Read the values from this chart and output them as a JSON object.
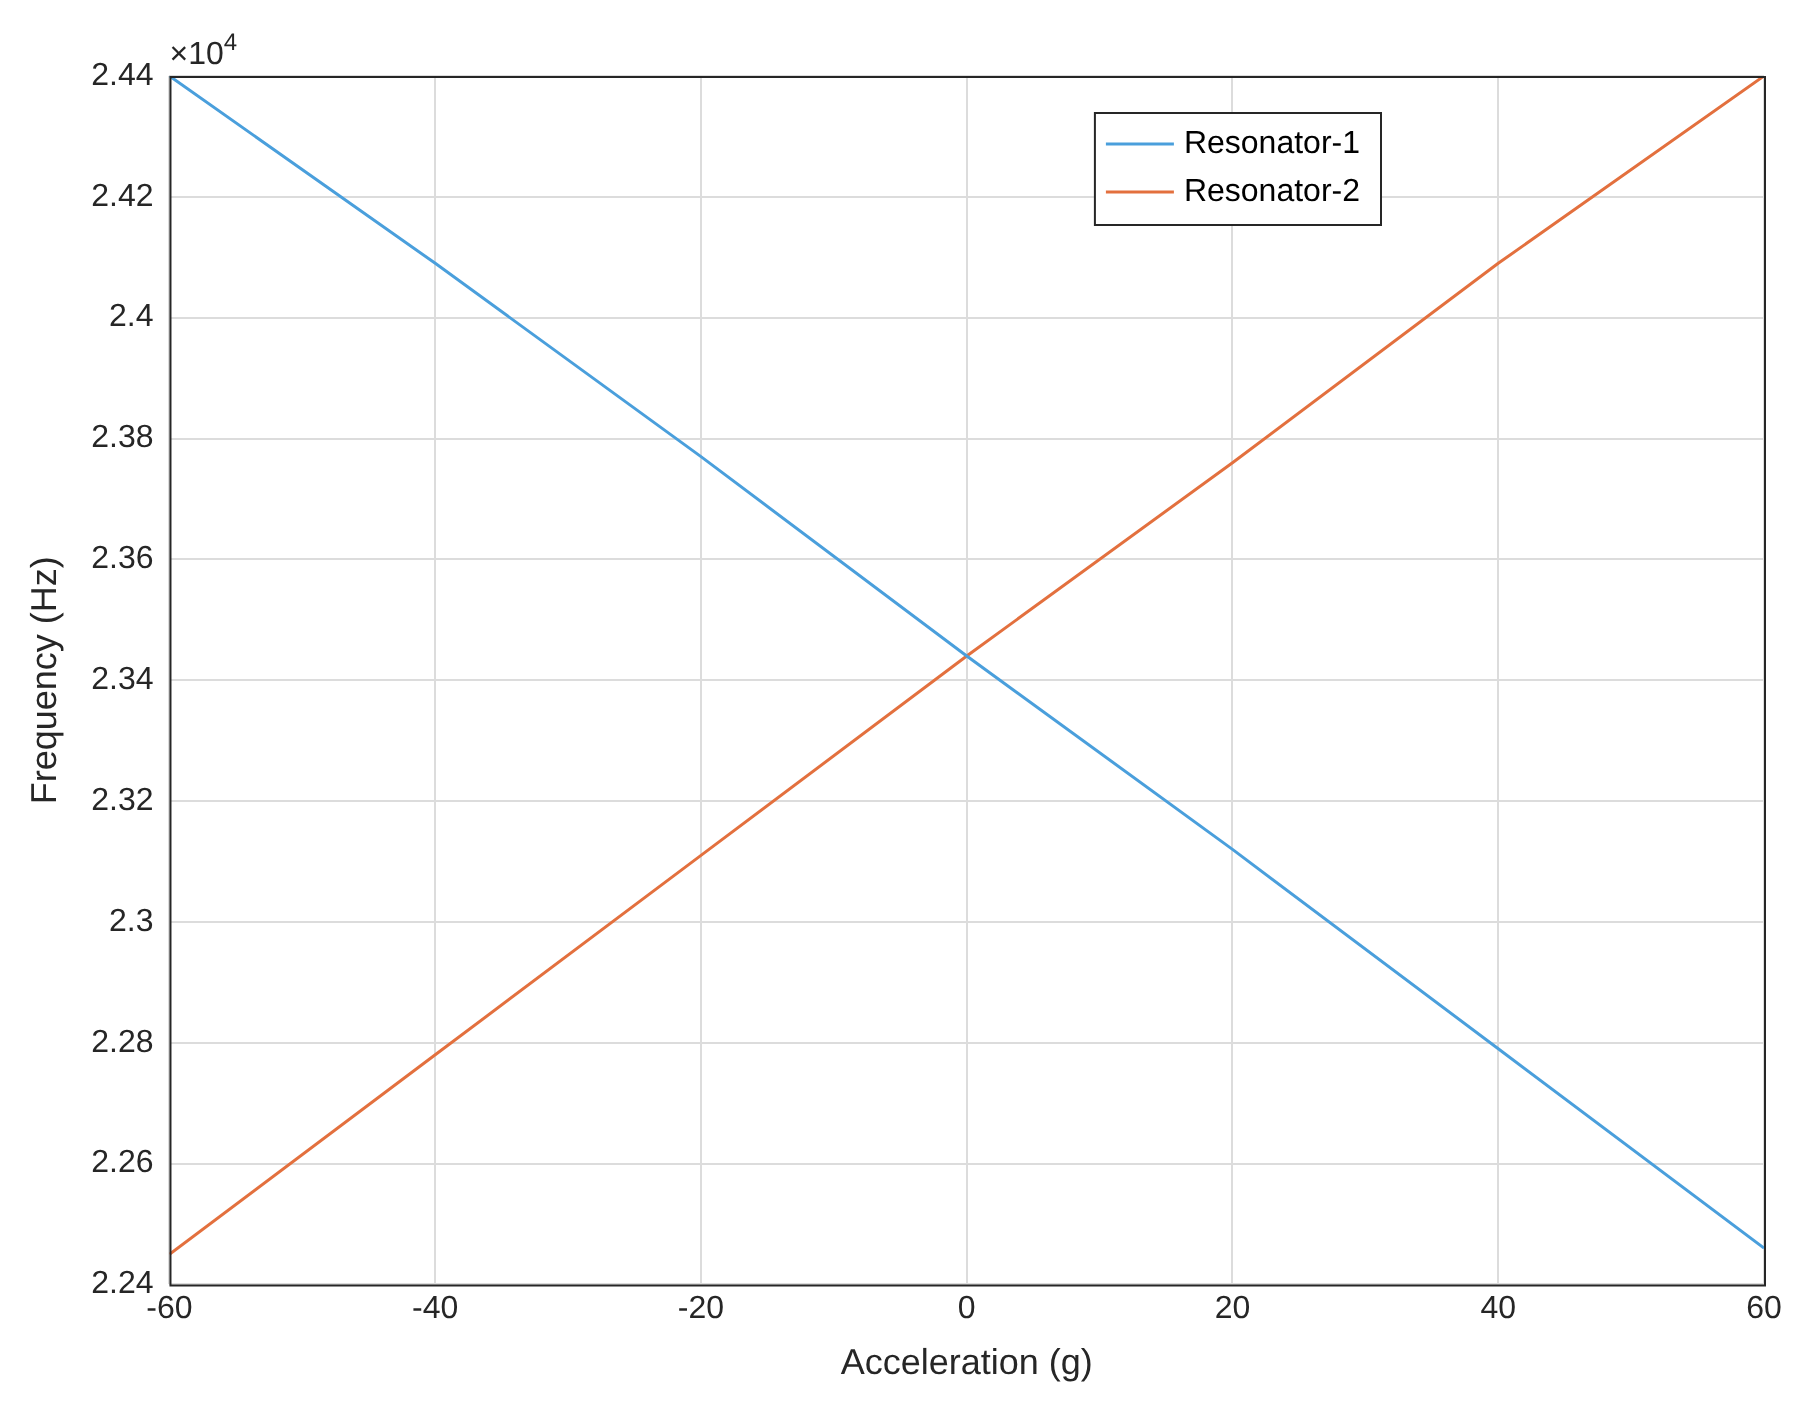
{
  "chart_data": {
    "type": "line",
    "xlabel": "Acceleration (g)",
    "ylabel": "Frequency (Hz)",
    "x": [
      -60,
      -40,
      -20,
      0,
      20,
      40,
      60
    ],
    "series": [
      {
        "name": "Resonator-1",
        "color": "#4a9fdc",
        "values": [
          2.44,
          2.409,
          2.377,
          2.344,
          2.312,
          2.279,
          2.246
        ]
      },
      {
        "name": "Resonator-2",
        "color": "#e3703e",
        "values": [
          2.245,
          2.278,
          2.311,
          2.344,
          2.376,
          2.409,
          2.44
        ]
      }
    ],
    "xlim": [
      -60,
      60
    ],
    "xticks": [
      -60,
      -40,
      -20,
      0,
      20,
      40,
      60
    ],
    "ylim": [
      2.24,
      2.44
    ],
    "yticks": [
      2.24,
      2.26,
      2.28,
      2.3,
      2.32,
      2.34,
      2.36,
      2.38,
      2.4,
      2.42,
      2.44
    ],
    "annotations": [
      "×10$^{4}$"
    ],
    "grid": true,
    "legend": "top right",
    "marker": "none",
    "line_style": "solid"
  }
}
